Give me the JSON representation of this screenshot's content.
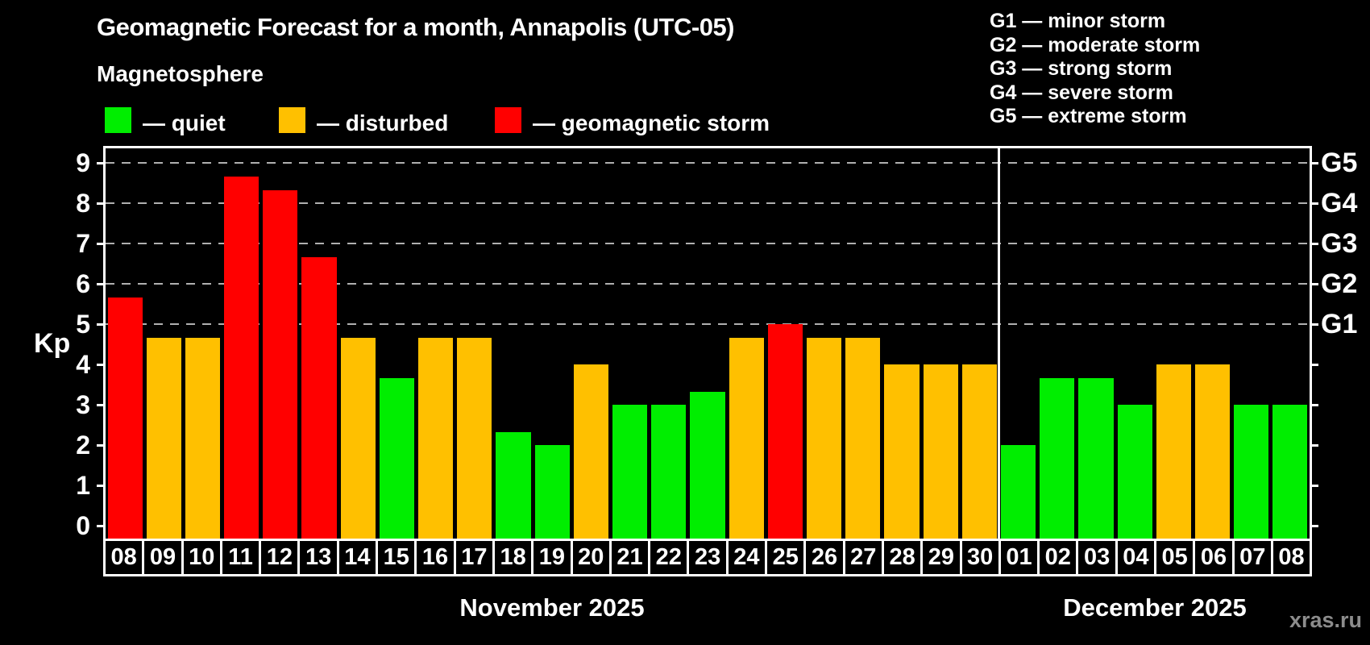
{
  "title": "Geomagnetic Forecast for a month, Annapolis (UTC-05)",
  "subtitle": "Magnetosphere",
  "legend": {
    "quiet_label": "— quiet",
    "disturbed_label": "— disturbed",
    "storm_label": "— geomagnetic storm"
  },
  "g_legend": [
    "G1 — minor storm",
    "G2 — moderate storm",
    "G3 — strong storm",
    "G4 — severe storm",
    "G5 — extreme storm"
  ],
  "y_axis": {
    "label": "Kp",
    "tick_labels": [
      "0",
      "1",
      "2",
      "3",
      "4",
      "5",
      "6",
      "7",
      "8",
      "9"
    ]
  },
  "right_axis": {
    "labels": [
      {
        "level": 5,
        "text": "G1"
      },
      {
        "level": 6,
        "text": "G2"
      },
      {
        "level": 7,
        "text": "G3"
      },
      {
        "level": 8,
        "text": "G4"
      },
      {
        "level": 9,
        "text": "G5"
      }
    ]
  },
  "months": [
    {
      "label": "November 2025",
      "days": 23
    },
    {
      "label": "December 2025",
      "days": 8
    }
  ],
  "watermark": "xras.ru",
  "colors": {
    "background": "#000000",
    "text": "#ffffff",
    "grid": "#b0b0b0",
    "quiet": "#00ee00",
    "disturbed": "#ffc000",
    "storm": "#ff0000",
    "watermark": "#8c8c8c"
  },
  "chart_data": {
    "type": "bar",
    "title": "Geomagnetic Forecast for a month, Annapolis (UTC-05)",
    "xlabel": "",
    "ylabel": "Kp",
    "ylim": [
      0,
      9.35
    ],
    "grid": "dashed horizontal lines at Kp 5,6,7,8,9 only",
    "grid_levels": [
      5,
      6,
      7,
      8,
      9
    ],
    "legend_position": "top-left",
    "categories": [
      "08",
      "09",
      "10",
      "11",
      "12",
      "13",
      "14",
      "15",
      "16",
      "17",
      "18",
      "19",
      "20",
      "21",
      "22",
      "23",
      "24",
      "25",
      "26",
      "27",
      "28",
      "29",
      "30",
      "01",
      "02",
      "03",
      "04",
      "05",
      "06",
      "07",
      "08"
    ],
    "values": [
      5.67,
      4.67,
      4.67,
      8.67,
      8.33,
      6.67,
      4.67,
      3.67,
      4.67,
      4.67,
      2.33,
      2.0,
      4.0,
      3.0,
      3.0,
      3.33,
      4.67,
      5.0,
      4.67,
      4.67,
      4.0,
      4.0,
      4.0,
      2.0,
      3.67,
      3.67,
      3.0,
      4.0,
      4.0,
      3.0,
      3.0
    ],
    "statuses": [
      "storm",
      "disturbed",
      "disturbed",
      "storm",
      "storm",
      "storm",
      "disturbed",
      "quiet",
      "disturbed",
      "disturbed",
      "quiet",
      "quiet",
      "disturbed",
      "quiet",
      "quiet",
      "quiet",
      "disturbed",
      "storm",
      "disturbed",
      "disturbed",
      "disturbed",
      "disturbed",
      "disturbed",
      "quiet",
      "quiet",
      "quiet",
      "quiet",
      "disturbed",
      "disturbed",
      "quiet",
      "quiet"
    ],
    "month_split_index": 23
  }
}
